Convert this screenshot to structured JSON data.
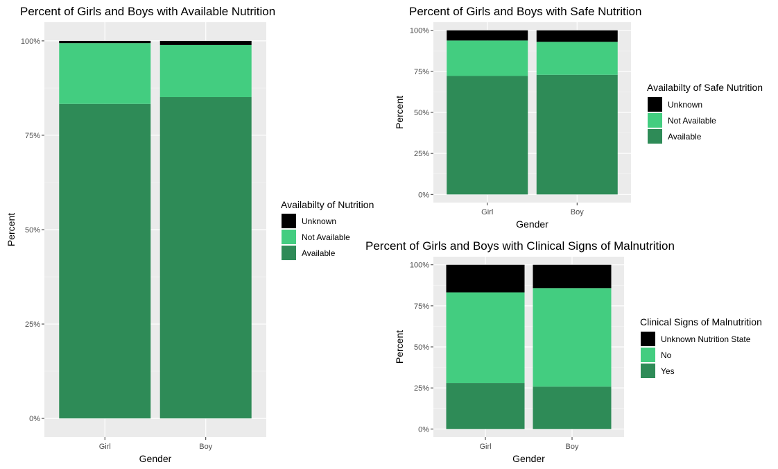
{
  "colors": {
    "panel_bg": "#EBEBEB",
    "grid_major": "#FFFFFF",
    "grid_minor": "#F5F5F5",
    "tick_text": "#4D4D4D",
    "title_text": "#000000",
    "unknown": "#000000",
    "middle": "#43CD80",
    "bottom": "#2E8B57"
  },
  "chart_data": [
    {
      "type": "bar",
      "stacked": true,
      "title": "Percent of Girls and Boys with Available Nutrition",
      "xlabel": "Gender",
      "ylabel": "Percent",
      "categories": [
        "Girl",
        "Boy"
      ],
      "ylim": [
        0,
        100
      ],
      "yticks": [
        "0%",
        "25%",
        "50%",
        "75%",
        "100%"
      ],
      "grid": true,
      "legend_position": "right",
      "legend_title": "Availabilty of Nutrition",
      "series": [
        {
          "name": "Available",
          "values": [
            83.3,
            85.1
          ]
        },
        {
          "name": "Not Available",
          "values": [
            16.1,
            13.8
          ]
        },
        {
          "name": "Unknown",
          "values": [
            0.6,
            1.1
          ]
        }
      ]
    },
    {
      "type": "bar",
      "stacked": true,
      "title": "Percent of Girls and Boys with Safe Nutrition",
      "xlabel": "Gender",
      "ylabel": "Percent",
      "categories": [
        "Girl",
        "Boy"
      ],
      "ylim": [
        0,
        100
      ],
      "yticks": [
        "0%",
        "25%",
        "50%",
        "75%",
        "100%"
      ],
      "grid": true,
      "legend_position": "right",
      "legend_title": "Availabilty of Safe Nutrition",
      "series": [
        {
          "name": "Available",
          "values": [
            72.2,
            72.9
          ]
        },
        {
          "name": "Not Available",
          "values": [
            21.6,
            20.1
          ]
        },
        {
          "name": "Unknown",
          "values": [
            6.2,
            7.0
          ]
        }
      ]
    },
    {
      "type": "bar",
      "stacked": true,
      "title": "Percent of Girls and Boys with Clinical Signs of Malnutrition",
      "xlabel": "Gender",
      "ylabel": "Percent",
      "categories": [
        "Girl",
        "Boy"
      ],
      "ylim": [
        0,
        100
      ],
      "yticks": [
        "0%",
        "25%",
        "50%",
        "75%",
        "100%"
      ],
      "grid": true,
      "legend_position": "right",
      "legend_title": "Clinical Signs of Malnutrition",
      "series": [
        {
          "name": "Yes",
          "values": [
            28.0,
            25.8
          ]
        },
        {
          "name": "No",
          "values": [
            55.2,
            60.0
          ]
        },
        {
          "name": "Unknown Nutrition State",
          "values": [
            16.8,
            14.2
          ]
        }
      ]
    }
  ]
}
